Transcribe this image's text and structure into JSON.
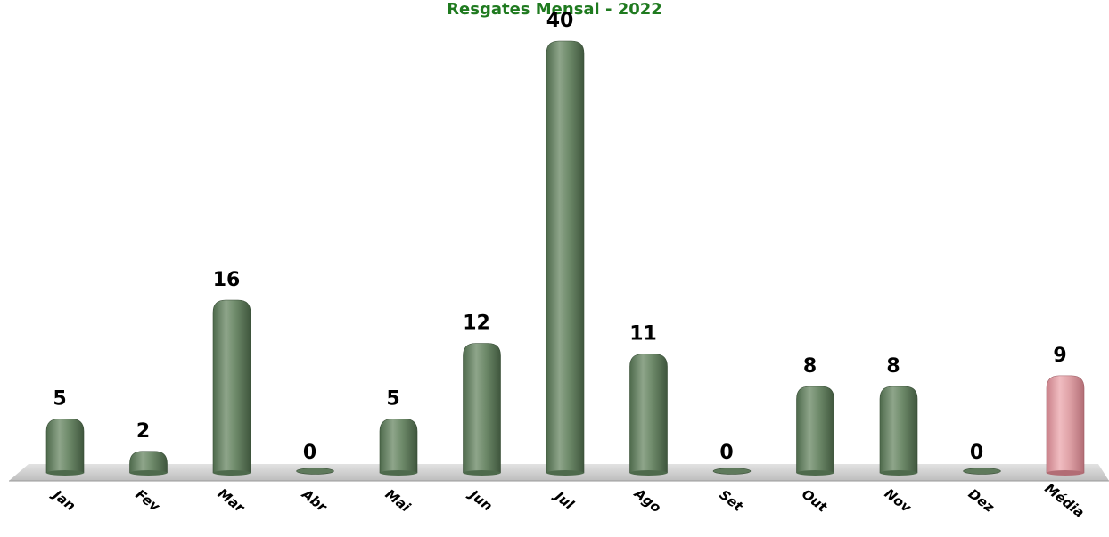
{
  "chart_data": {
    "type": "bar",
    "title": "Resgates Mensal - 2022",
    "xlabel": "",
    "ylabel": "",
    "ylim": [
      0,
      40
    ],
    "grid": false,
    "legend": "none",
    "categories": [
      "Jan",
      "Fev",
      "Mar",
      "Abr",
      "Mai",
      "Jun",
      "Jul",
      "Ago",
      "Set",
      "Out",
      "Nov",
      "Dez",
      "Média"
    ],
    "values": [
      5,
      2,
      16,
      0,
      5,
      12,
      40,
      11,
      0,
      8,
      8,
      0,
      9
    ],
    "colors": {
      "title": "#1f7a1f",
      "bar": "#6e8a6a",
      "bar_highlight": "#e0a3a8",
      "floor": "#cfcfcf"
    },
    "highlight_category": "Média"
  }
}
